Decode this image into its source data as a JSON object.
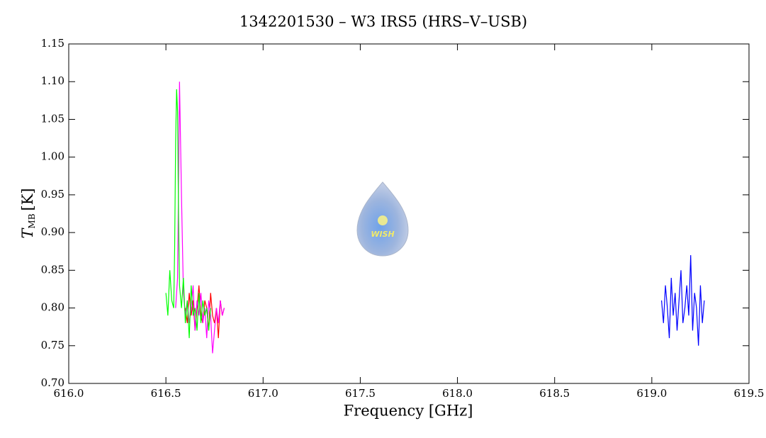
{
  "chart_data": {
    "type": "line",
    "title": "1342201530 – W3 IRS5 (HRS–V–USB)",
    "xlabel": "Frequency [GHz]",
    "ylabel": {
      "symbol": "T",
      "subscript": "MB",
      "unit": "[K]"
    },
    "logo_text": "WISH",
    "xlim": [
      616.0,
      619.5
    ],
    "ylim": [
      0.7,
      1.15
    ],
    "xticks": [
      {
        "value": 616.0,
        "label": "616.0"
      },
      616.5,
      {
        "value": 617.0,
        "label": "617.0"
      },
      617.5,
      {
        "value": 618.0,
        "label": "618.0"
      },
      618.5,
      {
        "value": 619.0,
        "label": "619.0"
      },
      619.5
    ],
    "yticks": [
      {
        "value": 0.7,
        "label": "0.70"
      },
      0.75,
      {
        "value": 0.8,
        "label": "0.80"
      },
      0.85,
      {
        "value": 0.9,
        "label": "0.90"
      },
      0.95,
      {
        "value": 1.0,
        "label": "1.00"
      },
      1.05,
      {
        "value": 1.1,
        "label": "1.10"
      },
      1.15
    ],
    "series": [
      {
        "color": "#ff0000",
        "x": [
          616.6,
          616.61,
          616.62,
          616.63,
          616.64,
          616.65,
          616.66,
          616.67,
          616.68,
          616.69,
          616.7,
          616.71,
          616.72,
          616.73,
          616.74,
          616.75,
          616.76,
          616.77,
          616.78,
          616.79,
          616.8
        ],
        "values": [
          0.8,
          0.78,
          0.82,
          0.79,
          0.81,
          0.77,
          0.8,
          0.83,
          0.79,
          0.78,
          0.81,
          0.8,
          0.77,
          0.82,
          0.79,
          0.78,
          0.8,
          0.76,
          0.81,
          0.79,
          0.8
        ]
      },
      {
        "color": "#ff00ff",
        "x": [
          616.55,
          616.56,
          616.57,
          616.58,
          616.59,
          616.6,
          616.61,
          616.62,
          616.63,
          616.64,
          616.65,
          616.66,
          616.67,
          616.68,
          616.69,
          616.7,
          616.71,
          616.72,
          616.73,
          616.74,
          616.75,
          616.76,
          616.77,
          616.78,
          616.79,
          616.8
        ],
        "values": [
          0.8,
          0.84,
          1.1,
          0.95,
          0.82,
          0.79,
          0.81,
          0.78,
          0.8,
          0.83,
          0.77,
          0.81,
          0.79,
          0.82,
          0.78,
          0.8,
          0.76,
          0.81,
          0.79,
          0.74,
          0.77,
          0.8,
          0.78,
          0.81,
          0.79,
          0.8
        ]
      },
      {
        "color": "#00ff00",
        "x": [
          616.5,
          616.51,
          616.52,
          616.53,
          616.54,
          616.545,
          616.55,
          616.555,
          616.56,
          616.565,
          616.57,
          616.58,
          616.59,
          616.6,
          616.61,
          616.62,
          616.63,
          616.64,
          616.65,
          616.66,
          616.67,
          616.68,
          616.69,
          616.7,
          616.71,
          616.72,
          616.73
        ],
        "values": [
          0.82,
          0.79,
          0.85,
          0.81,
          0.8,
          0.88,
          1.02,
          1.09,
          1.06,
          0.92,
          0.83,
          0.8,
          0.84,
          0.78,
          0.81,
          0.76,
          0.83,
          0.79,
          0.8,
          0.77,
          0.82,
          0.78,
          0.81,
          0.79,
          0.8,
          0.77,
          0.8
        ]
      },
      {
        "color": "#0000ff",
        "x": [
          619.05,
          619.06,
          619.07,
          619.08,
          619.09,
          619.1,
          619.11,
          619.12,
          619.13,
          619.14,
          619.15,
          619.16,
          619.17,
          619.18,
          619.19,
          619.2,
          619.21,
          619.22,
          619.23,
          619.24,
          619.25,
          619.26,
          619.27
        ],
        "values": [
          0.81,
          0.78,
          0.83,
          0.8,
          0.76,
          0.84,
          0.79,
          0.82,
          0.77,
          0.81,
          0.85,
          0.78,
          0.8,
          0.83,
          0.79,
          0.87,
          0.77,
          0.82,
          0.8,
          0.75,
          0.83,
          0.78,
          0.81
        ]
      }
    ]
  }
}
